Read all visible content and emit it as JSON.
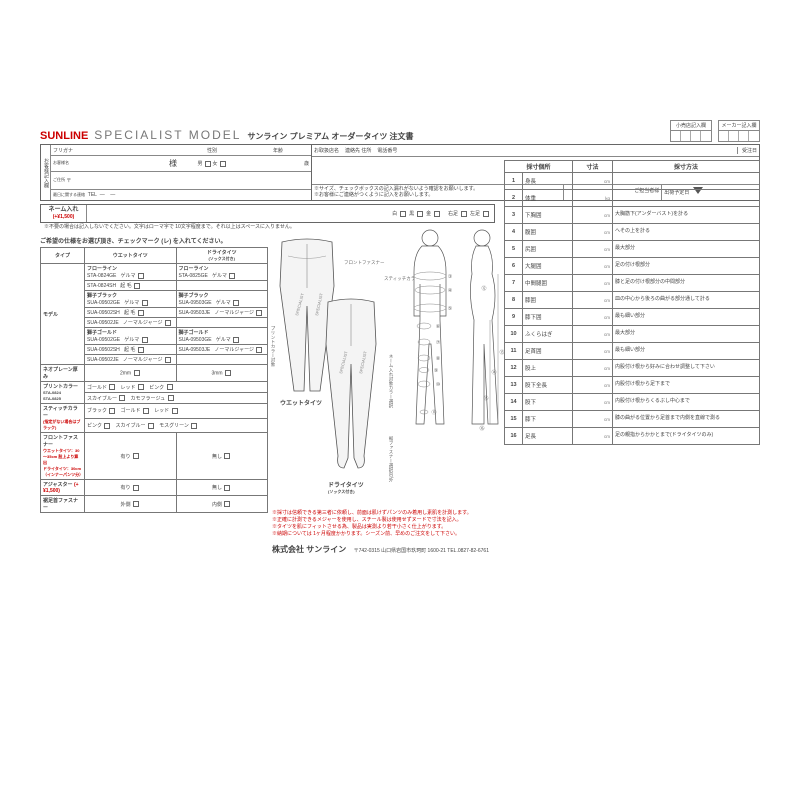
{
  "header": {
    "brand": "SUNLINE",
    "brand_sub": "SPECIALIST MODEL",
    "doc_title": "サンライン プレミアム オーダータイツ 注文書",
    "retail_col": "小売店記入欄",
    "maker_col": "メーカー記入欄"
  },
  "customer": {
    "rot": "お客様記入欄",
    "furigana": "フリガナ",
    "name_suffix": "様",
    "gender_label": "性別",
    "gender_m": "男",
    "gender_f": "女",
    "age_label": "年齢",
    "age_unit": "歳",
    "name_label": "お客様名",
    "addr_label": "ご住所",
    "postal": "〒",
    "freecontact": "最日に関する連絡",
    "tel": "TEL",
    "dash": "—"
  },
  "dealer": {
    "shop": "お取扱店名",
    "contact": "連絡先 住所",
    "tel": "電話番号",
    "recv": "受注日",
    "ship": "出荷予定日",
    "person": "ご担当者様",
    "note": "※サイズ、チェックボックスの記入漏れがないよう確認をお願いします。\n※お客様にご連絡がつくように記入をお願いします。"
  },
  "name_in": {
    "label": "ネーム入れ",
    "price": "(+¥1,500)",
    "note": "※不要の場合は記入しないでください。文字はローマ字で 10文字程度まで。それ以上はスペースに入りません。",
    "c1": "白",
    "c2": "黒",
    "c3": "金",
    "c4": "右足",
    "c5": "左足"
  },
  "section_note": "ご希望の仕様をお選び頂き、チェックマーク (レ) を入れてください。",
  "type_table": {
    "h1": "タイプ",
    "h2": "ウエットタイツ",
    "h3": "ドライタイツ",
    "h3sub": "(ソックス付き)",
    "rows": [
      {
        "l": "モデル",
        "lines": [
          {
            "name": "フローライン",
            "sku1": "STA-0824GE",
            "mat1": "ゲルマ",
            "sku2": "STA-0825GE",
            "mat2": "ゲルマ"
          },
          {
            "name": "",
            "sku1": "STA-0824SH",
            "mat1": "起 毛",
            "sku2": "",
            "mat2": ""
          },
          {
            "name": "獅子ブラック",
            "sku1": "SUA-09502GE",
            "mat1": "ゲルマ",
            "sku2": "SUA-09503GE",
            "mat2": "ゲルマ"
          },
          {
            "name": "",
            "sku1": "SUA-09502SH",
            "mat1": "起 毛",
            "sku2": "SUA-09503JE",
            "mat2": "ノーマルジャージ"
          },
          {
            "name": "",
            "sku1": "SUA-09502JE",
            "mat1": "ノーマルジャージ",
            "sku2": "",
            "mat2": ""
          },
          {
            "name": "獅子ゴールド",
            "sku1": "SUA-09502GE",
            "mat1": "ゲルマ",
            "sku2": "SUA-09503GE",
            "mat2": "ゲルマ"
          },
          {
            "name": "",
            "sku1": "SUA-09502SH",
            "mat1": "起 毛",
            "sku2": "SUA-09503JE",
            "mat2": "ノーマルジャージ"
          },
          {
            "name": "",
            "sku1": "SUA-09502JE",
            "mat1": "ノーマルジャージ",
            "sku2": "",
            "mat2": ""
          }
        ]
      }
    ],
    "neo": "ネオプレーン厚み",
    "neo2": "2mm",
    "neo3": "3mm",
    "print": "プリントカラー",
    "print_sub": "STA-0824\nSTA-0825",
    "print_r1": [
      "ゴールド",
      "レッド",
      "ピンク"
    ],
    "print_r2": [
      "スカイブルー",
      "カモフラージュ",
      ""
    ],
    "stitch": "スティッチカラー",
    "stitch_sub": "(指定がない場合はブラック)",
    "stitch_r1": [
      "ブラック",
      "ゴールド",
      "レッド"
    ],
    "stitch_r2": [
      "ピンク",
      "スカイブルー",
      "モスグリーン"
    ],
    "frontf": "フロントファスナー",
    "frontf_sub": "ウエットタイツ：30～35cm 股上より算出\nドライタイツ：30cm（インナーパンツ分）",
    "frontf_y": "有り",
    "frontf_n": "無し",
    "adj": "アジャスター",
    "adj_price": "(+¥1,500)",
    "adj_y": "有り",
    "adj_n": "無し",
    "ankle": "裾足首ファスナー",
    "ankle_o": "外側",
    "ankle_i": "内側"
  },
  "illus": {
    "wet": "ウエットタイツ",
    "dry": "ドライタイツ",
    "dry_sub": "(ソックス付き)",
    "anno_front": "フロントファスナー",
    "anno_print": "プリントカラー対象",
    "anno_stitch": "スティッチカラー対象",
    "anno_name": "ネーム入れ対象カラー選択",
    "anno_ankle": "裾ファスナー選択内/外",
    "warnings": [
      "※採寸は信頼できる第三者に依頼し、前面は肌けずパンツのみ着用し素肌を計測します。",
      "※正確に計測できるメジャーを使用し、スチール製は使用せずヌードで寸法を記入。",
      "※タイツを肌にフィットさせる為、製品は実測より若干小さく仕上がります。",
      "※納期については 1ヶ月程度かかります。シーズン前、早めのご注文をして下さい。"
    ]
  },
  "measure": {
    "h1": "採寸個所",
    "h2": "寸法",
    "h3": "採寸方法",
    "rows": [
      {
        "n": "1",
        "p": "身長",
        "u": "cm",
        "m": ""
      },
      {
        "n": "2",
        "p": "体重",
        "u": "kg",
        "m": ""
      },
      {
        "n": "3",
        "p": "下胸囲",
        "u": "cm",
        "m": "大胸筋下(アンダーバスト)を計る"
      },
      {
        "n": "4",
        "p": "腹囲",
        "u": "cm",
        "m": "へその上を計る"
      },
      {
        "n": "5",
        "p": "尻囲",
        "u": "cm",
        "m": "最大部分"
      },
      {
        "n": "6",
        "p": "大腿囲",
        "u": "cm",
        "m": "足の付け根部分"
      },
      {
        "n": "7",
        "p": "中間腿囲",
        "u": "cm",
        "m": "膝と足の付け根部分の中間部分"
      },
      {
        "n": "8",
        "p": "膝囲",
        "u": "cm",
        "m": "皿の中心から後ろの曲がる部分通して計る"
      },
      {
        "n": "9",
        "p": "膝下囲",
        "u": "cm",
        "m": "最も細い部分"
      },
      {
        "n": "10",
        "p": "ふくらはぎ",
        "u": "cm",
        "m": "最大部分"
      },
      {
        "n": "11",
        "p": "足首囲",
        "u": "cm",
        "m": "最も細い部分"
      },
      {
        "n": "12",
        "p": "股上",
        "u": "cm",
        "m": "内股付け根から好みに合わせ調整して下さい"
      },
      {
        "n": "13",
        "p": "股下全長",
        "u": "cm",
        "m": "内股付け根から足下まで"
      },
      {
        "n": "14",
        "p": "股下",
        "u": "cm",
        "m": "内股付け根からくるぶし中心まで"
      },
      {
        "n": "15",
        "p": "膝下",
        "u": "cm",
        "m": "膝の曲がる位置から足首まで内側を直線で測る"
      },
      {
        "n": "16",
        "p": "足長",
        "u": "cm",
        "m": "足の親指からかかとまで(ドライタイツのみ)"
      }
    ]
  },
  "company": {
    "name": "株式会社 サンライン",
    "addr": "〒742-0315  山口県岩国市玖珂町 1600-21  TEL.0827-82-6761"
  }
}
